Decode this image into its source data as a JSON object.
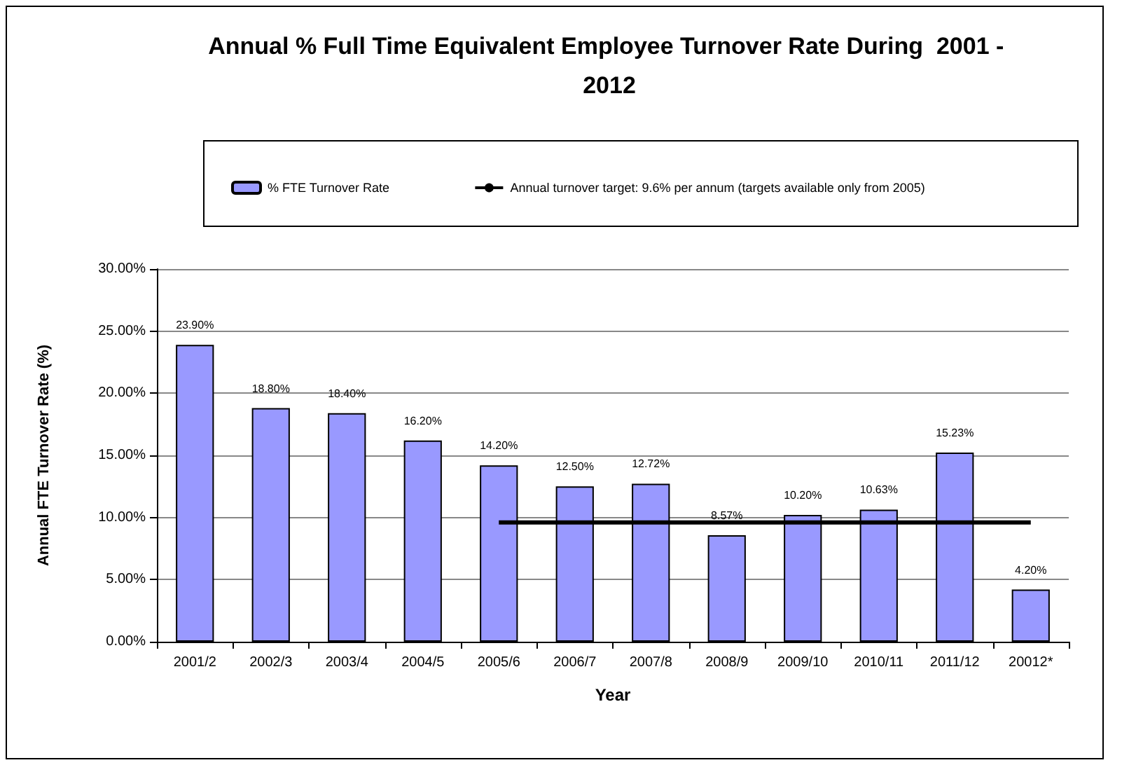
{
  "chart_data": {
    "type": "bar",
    "title": "Annual % Full Time Equivalent Employee Turnover Rate During  2001 - 2012",
    "xlabel": "Year",
    "ylabel": "Annual FTE Turnover Rate (%)",
    "categories": [
      "2001/2",
      "2002/3",
      "2003/4",
      "2004/5",
      "2005/6",
      "2006/7",
      "2007/8",
      "2008/9",
      "2009/10",
      "2010/11",
      "2011/12",
      "20012*"
    ],
    "series": [
      {
        "name": "% FTE Turnover Rate",
        "color": "#9999ff",
        "values": [
          23.9,
          18.8,
          18.4,
          16.2,
          14.2,
          12.5,
          12.72,
          8.57,
          10.2,
          10.63,
          15.23,
          4.2
        ],
        "value_labels": [
          "23.90%",
          "18.80%",
          "18.40%",
          "16.20%",
          "14.20%",
          "12.50%",
          "12.72%",
          "8.57%",
          "10.20%",
          "10.63%",
          "15.23%",
          "4.20%"
        ]
      },
      {
        "name": "Annual turnover target: 9.6% per annum (targets available only from 2005)",
        "type": "line",
        "color": "#000000",
        "values": [
          null,
          null,
          null,
          null,
          9.6,
          9.6,
          9.6,
          9.6,
          9.6,
          9.6,
          9.6,
          9.6
        ]
      }
    ],
    "ylim": [
      0,
      30
    ],
    "yticks": [
      {
        "value": 0,
        "label": "0.00%"
      },
      {
        "value": 5,
        "label": "5.00%"
      },
      {
        "value": 10,
        "label": "10.00%"
      },
      {
        "value": 15,
        "label": "15.00%"
      },
      {
        "value": 20,
        "label": "20.00%"
      },
      {
        "value": 25,
        "label": "25.00%"
      },
      {
        "value": 30,
        "label": "30.00%"
      }
    ],
    "grid": "y",
    "legend": "top",
    "marker": "none"
  }
}
